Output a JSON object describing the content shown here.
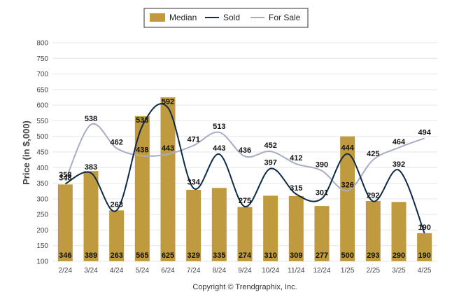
{
  "chart_data": {
    "type": "bar",
    "categories": [
      "2/24",
      "3/24",
      "4/24",
      "5/24",
      "6/24",
      "7/24",
      "8/24",
      "9/24",
      "10/24",
      "11/24",
      "12/24",
      "1/25",
      "2/25",
      "3/25",
      "4/25"
    ],
    "series": [
      {
        "name": "Median",
        "type": "bar",
        "color": "#c09a3e",
        "values": [
          346,
          389,
          263,
          565,
          625,
          329,
          335,
          274,
          310,
          309,
          277,
          500,
          293,
          290,
          190
        ]
      },
      {
        "name": "Sold",
        "type": "line",
        "color": "#0e2a47",
        "values": [
          348,
          383,
          263,
          533,
          592,
          334,
          443,
          275,
          397,
          315,
          301,
          444,
          292,
          392,
          190
        ]
      },
      {
        "name": "For Sale",
        "type": "line",
        "color": "#a8adc4",
        "values": [
          358,
          538,
          462,
          438,
          443,
          471,
          513,
          436,
          452,
          412,
          390,
          326,
          425,
          464,
          494
        ]
      }
    ],
    "ylabel": "Price (in $,000)",
    "xlabel": "",
    "ylim": [
      100,
      800
    ],
    "yticks": [
      100,
      150,
      200,
      250,
      300,
      350,
      400,
      450,
      500,
      550,
      600,
      650,
      700,
      750,
      800
    ],
    "grid": true,
    "legend_position": "top-center"
  },
  "copyright": "Copyright © Trendgraphix, Inc."
}
